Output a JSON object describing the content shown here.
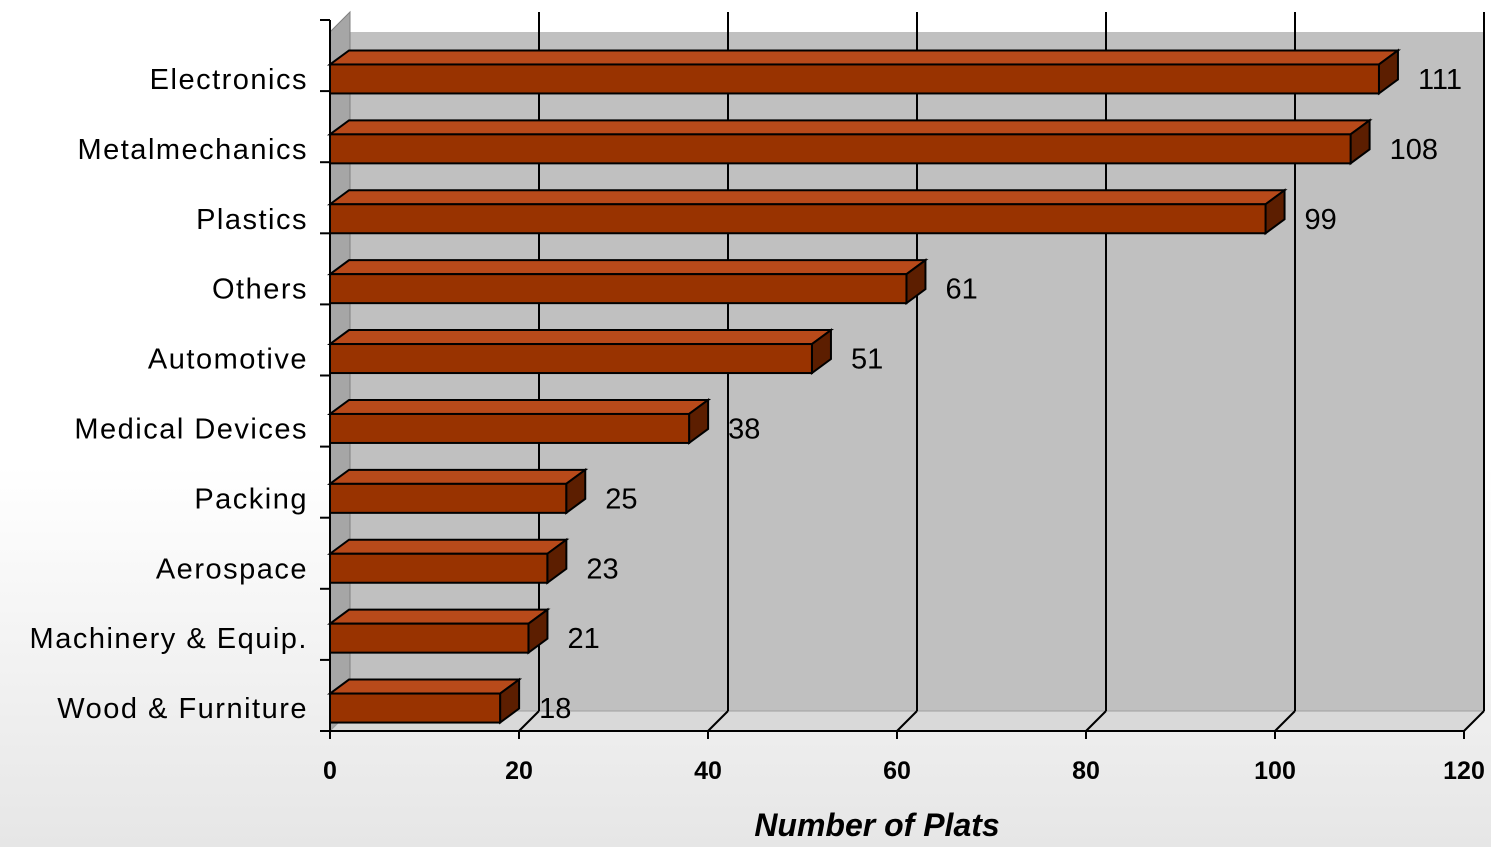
{
  "chart_data": {
    "type": "bar",
    "orientation": "horizontal",
    "style": "3d",
    "categories": [
      "Electronics",
      "Metalmechanics",
      "Plastics",
      "Others",
      "Automotive",
      "Medical Devices",
      "Packing",
      "Aerospace",
      "Machinery & Equip.",
      "Wood & Furniture"
    ],
    "values": [
      111,
      108,
      99,
      61,
      51,
      38,
      25,
      23,
      21,
      18
    ],
    "data_labels": [
      "111",
      "108",
      "99",
      "61",
      "51",
      "38",
      "25",
      "23",
      "21",
      "18"
    ],
    "xlabel": "Number of Plats",
    "ylabel": "",
    "xlim": [
      0,
      120
    ],
    "xticks": [
      "0",
      "20",
      "40",
      "60",
      "80",
      "100",
      "120"
    ],
    "grid": true,
    "legend": "none",
    "colors": {
      "bar_front": "#993300",
      "bar_top": "#b84a1a",
      "bar_side": "#5c1e00",
      "plot_back": "#c0c0c0",
      "plot_wall": "#a6a6a6",
      "plot_floor": "#d9d9d9"
    }
  }
}
